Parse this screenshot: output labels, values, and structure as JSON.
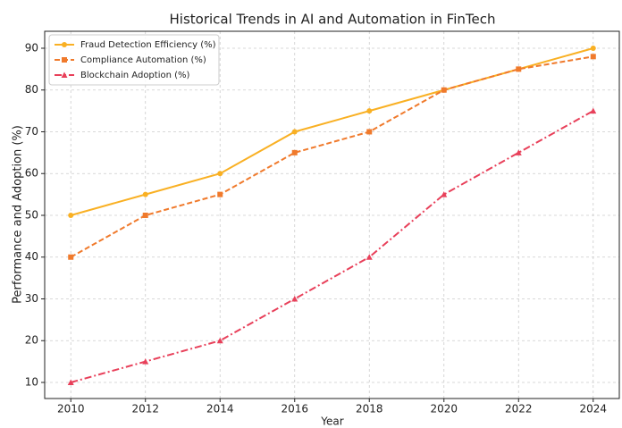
{
  "chart_data": {
    "type": "line",
    "title": "Historical Trends in AI and Automation in FinTech",
    "xlabel": "Year",
    "ylabel": "Performance and Adoption (%)",
    "x": [
      2010,
      2012,
      2014,
      2016,
      2018,
      2020,
      2022,
      2024
    ],
    "series": [
      {
        "name": "Fraud Detection Efficiency (%)",
        "color": "#f9b023",
        "marker": "circle",
        "linestyle": "solid",
        "values": [
          50,
          55,
          60,
          70,
          75,
          80,
          85,
          90
        ]
      },
      {
        "name": "Compliance Automation (%)",
        "color": "#f07a2c",
        "marker": "square",
        "linestyle": "dashed",
        "values": [
          40,
          50,
          55,
          65,
          70,
          80,
          85,
          88
        ]
      },
      {
        "name": "Blockchain Adoption (%)",
        "color": "#e8405a",
        "marker": "triangle",
        "linestyle": "dashdot",
        "values": [
          10,
          15,
          20,
          30,
          40,
          55,
          65,
          75
        ]
      }
    ],
    "xlim": [
      2009.3,
      2024.7
    ],
    "xticks": [
      2010,
      2012,
      2014,
      2016,
      2018,
      2020,
      2022,
      2024
    ],
    "ylim": [
      6.15,
      94.06
    ],
    "yticks": [
      10,
      20,
      30,
      40,
      50,
      60,
      70,
      80,
      90
    ],
    "grid": true,
    "legend": "upper left"
  }
}
